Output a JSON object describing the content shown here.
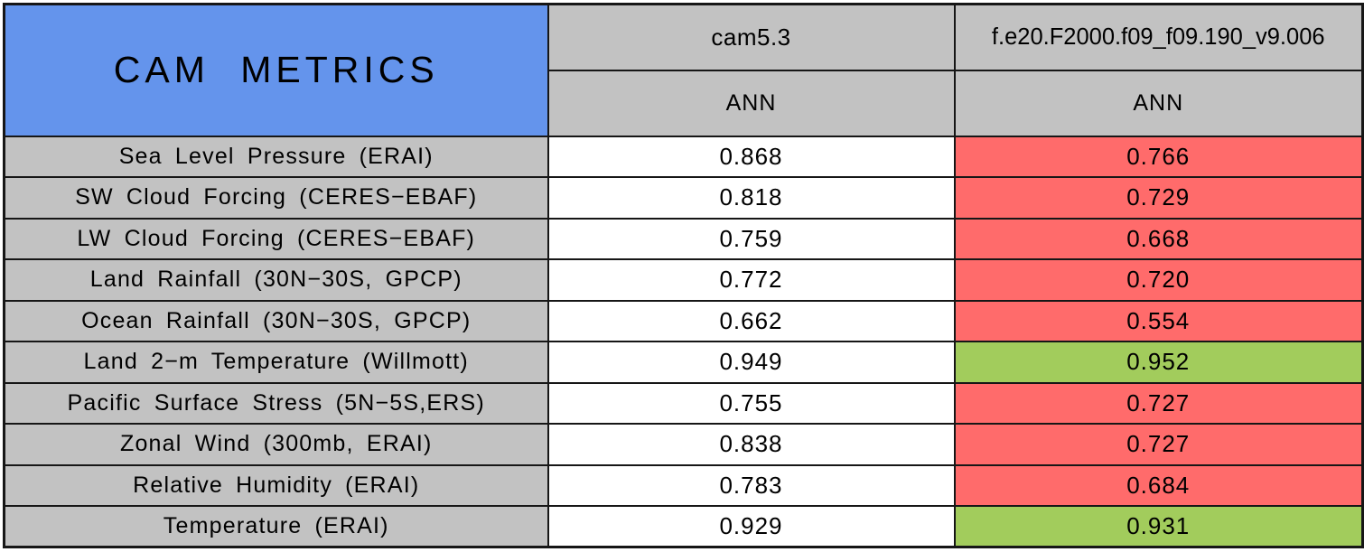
{
  "colors": {
    "header_blue": "#6494EC",
    "cell_gray": "#C2C2C2",
    "worse_red": "#FF6B6B",
    "better_green": "#A2CC5C",
    "baseline_white": "#FFFFFF",
    "border_black": "#161616"
  },
  "header": {
    "title": "CAM METRICS",
    "runs": [
      {
        "name": "cam5.3",
        "season": "ANN"
      },
      {
        "name": "f.e20.F2000.f09_f09.190_v9.006",
        "season": "ANN"
      }
    ]
  },
  "rows": [
    {
      "metric": "Sea Level Pressure (ERAI)",
      "cells": [
        {
          "value": "0.868",
          "status": "baseline"
        },
        {
          "value": "0.766",
          "status": "worse"
        }
      ]
    },
    {
      "metric": "SW Cloud Forcing (CERES−EBAF)",
      "cells": [
        {
          "value": "0.818",
          "status": "baseline"
        },
        {
          "value": "0.729",
          "status": "worse"
        }
      ]
    },
    {
      "metric": "LW Cloud Forcing (CERES−EBAF)",
      "cells": [
        {
          "value": "0.759",
          "status": "baseline"
        },
        {
          "value": "0.668",
          "status": "worse"
        }
      ]
    },
    {
      "metric": "Land Rainfall (30N−30S, GPCP)",
      "cells": [
        {
          "value": "0.772",
          "status": "baseline"
        },
        {
          "value": "0.720",
          "status": "worse"
        }
      ]
    },
    {
      "metric": "Ocean Rainfall (30N−30S, GPCP)",
      "cells": [
        {
          "value": "0.662",
          "status": "baseline"
        },
        {
          "value": "0.554",
          "status": "worse"
        }
      ]
    },
    {
      "metric": "Land 2−m Temperature (Willmott)",
      "cells": [
        {
          "value": "0.949",
          "status": "baseline"
        },
        {
          "value": "0.952",
          "status": "better"
        }
      ]
    },
    {
      "metric": "Pacific Surface Stress (5N−5S,ERS)",
      "cells": [
        {
          "value": "0.755",
          "status": "baseline"
        },
        {
          "value": "0.727",
          "status": "worse"
        }
      ]
    },
    {
      "metric": "Zonal Wind (300mb, ERAI)",
      "cells": [
        {
          "value": "0.838",
          "status": "baseline"
        },
        {
          "value": "0.727",
          "status": "worse"
        }
      ]
    },
    {
      "metric": "Relative Humidity (ERAI)",
      "cells": [
        {
          "value": "0.783",
          "status": "baseline"
        },
        {
          "value": "0.684",
          "status": "worse"
        }
      ]
    },
    {
      "metric": "Temperature (ERAI)",
      "cells": [
        {
          "value": "0.929",
          "status": "baseline"
        },
        {
          "value": "0.931",
          "status": "better"
        }
      ]
    }
  ],
  "chart_data": {
    "type": "table",
    "title": "CAM METRICS",
    "columns": [
      {
        "run": "cam5.3",
        "season": "ANN"
      },
      {
        "run": "f.e20.F2000.f09_f09.190_v9.006",
        "season": "ANN"
      }
    ],
    "metrics": [
      "Sea Level Pressure (ERAI)",
      "SW Cloud Forcing (CERES−EBAF)",
      "LW Cloud Forcing (CERES−EBAF)",
      "Land Rainfall (30N−30S, GPCP)",
      "Ocean Rainfall (30N−30S, GPCP)",
      "Land 2−m Temperature (Willmott)",
      "Pacific Surface Stress (5N−5S,ERS)",
      "Zonal Wind (300mb, ERAI)",
      "Relative Humidity (ERAI)",
      "Temperature (ERAI)"
    ],
    "values": [
      [
        0.868,
        0.766
      ],
      [
        0.818,
        0.729
      ],
      [
        0.759,
        0.668
      ],
      [
        0.772,
        0.72
      ],
      [
        0.662,
        0.554
      ],
      [
        0.949,
        0.952
      ],
      [
        0.755,
        0.727
      ],
      [
        0.838,
        0.727
      ],
      [
        0.783,
        0.684
      ],
      [
        0.929,
        0.931
      ]
    ],
    "second_run_status": [
      "worse",
      "worse",
      "worse",
      "worse",
      "worse",
      "better",
      "worse",
      "worse",
      "worse",
      "better"
    ],
    "legend": {
      "worse": "red",
      "better": "green",
      "baseline": "white"
    }
  }
}
